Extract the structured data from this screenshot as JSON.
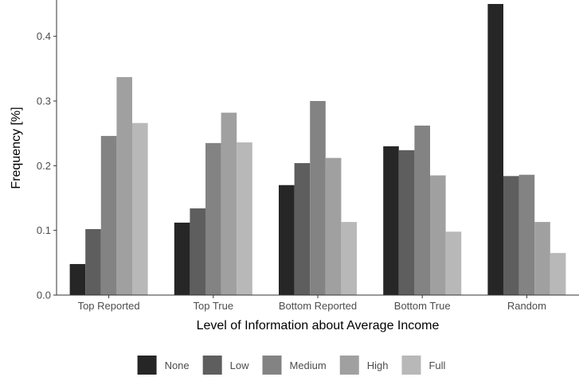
{
  "chart_data": {
    "type": "bar",
    "title": "",
    "xlabel": "Level of Information about Average Income",
    "ylabel": "Frequency [%]",
    "ylim": [
      0,
      0.45
    ],
    "yticks": [
      0.0,
      0.1,
      0.2,
      0.3,
      0.4
    ],
    "ytick_labels": [
      "0.0",
      "0.1",
      "0.2",
      "0.3",
      "0.4"
    ],
    "categories": [
      "Top Reported",
      "Top True",
      "Bottom Reported",
      "Bottom True",
      "Random"
    ],
    "series": [
      {
        "name": "None",
        "color": "#262626",
        "values": [
          0.048,
          0.112,
          0.17,
          0.23,
          0.45
        ]
      },
      {
        "name": "Low",
        "color": "#5e5e5e",
        "values": [
          0.102,
          0.134,
          0.204,
          0.224,
          0.184
        ]
      },
      {
        "name": "Medium",
        "color": "#838383",
        "values": [
          0.246,
          0.235,
          0.3,
          0.262,
          0.186
        ]
      },
      {
        "name": "High",
        "color": "#a0a0a0",
        "values": [
          0.337,
          0.282,
          0.212,
          0.185,
          0.113
        ]
      },
      {
        "name": "Full",
        "color": "#b8b8b8",
        "values": [
          0.266,
          0.236,
          0.113,
          0.098,
          0.065
        ]
      }
    ],
    "grid": false,
    "legend_position": "bottom"
  }
}
